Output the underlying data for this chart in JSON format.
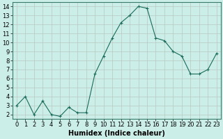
{
  "x": [
    0,
    1,
    2,
    3,
    4,
    5,
    6,
    7,
    8,
    9,
    10,
    11,
    12,
    13,
    14,
    15,
    16,
    17,
    18,
    19,
    20,
    21,
    22,
    23
  ],
  "y": [
    3.0,
    4.0,
    2.0,
    3.5,
    2.0,
    1.8,
    2.8,
    2.2,
    2.2,
    6.5,
    8.5,
    10.5,
    12.2,
    13.0,
    14.0,
    13.8,
    10.5,
    10.2,
    9.0,
    8.5,
    6.5,
    6.5,
    7.0,
    8.8
  ],
  "line_color": "#1a6b5a",
  "marker": "+",
  "marker_size": 3,
  "bg_color": "#cceee8",
  "grid_color": "#b8c8c0",
  "xlabel": "Humidex (Indice chaleur)",
  "ylim": [
    1.5,
    14.5
  ],
  "xlim": [
    -0.5,
    23.5
  ],
  "yticks": [
    2,
    3,
    4,
    5,
    6,
    7,
    8,
    9,
    10,
    11,
    12,
    13,
    14
  ],
  "xticks": [
    0,
    1,
    2,
    3,
    4,
    5,
    6,
    7,
    8,
    9,
    10,
    11,
    12,
    13,
    14,
    15,
    16,
    17,
    18,
    19,
    20,
    21,
    22,
    23
  ],
  "xlabel_fontsize": 7,
  "tick_fontsize": 6,
  "linewidth": 0.8,
  "fig_width": 3.2,
  "fig_height": 2.0
}
